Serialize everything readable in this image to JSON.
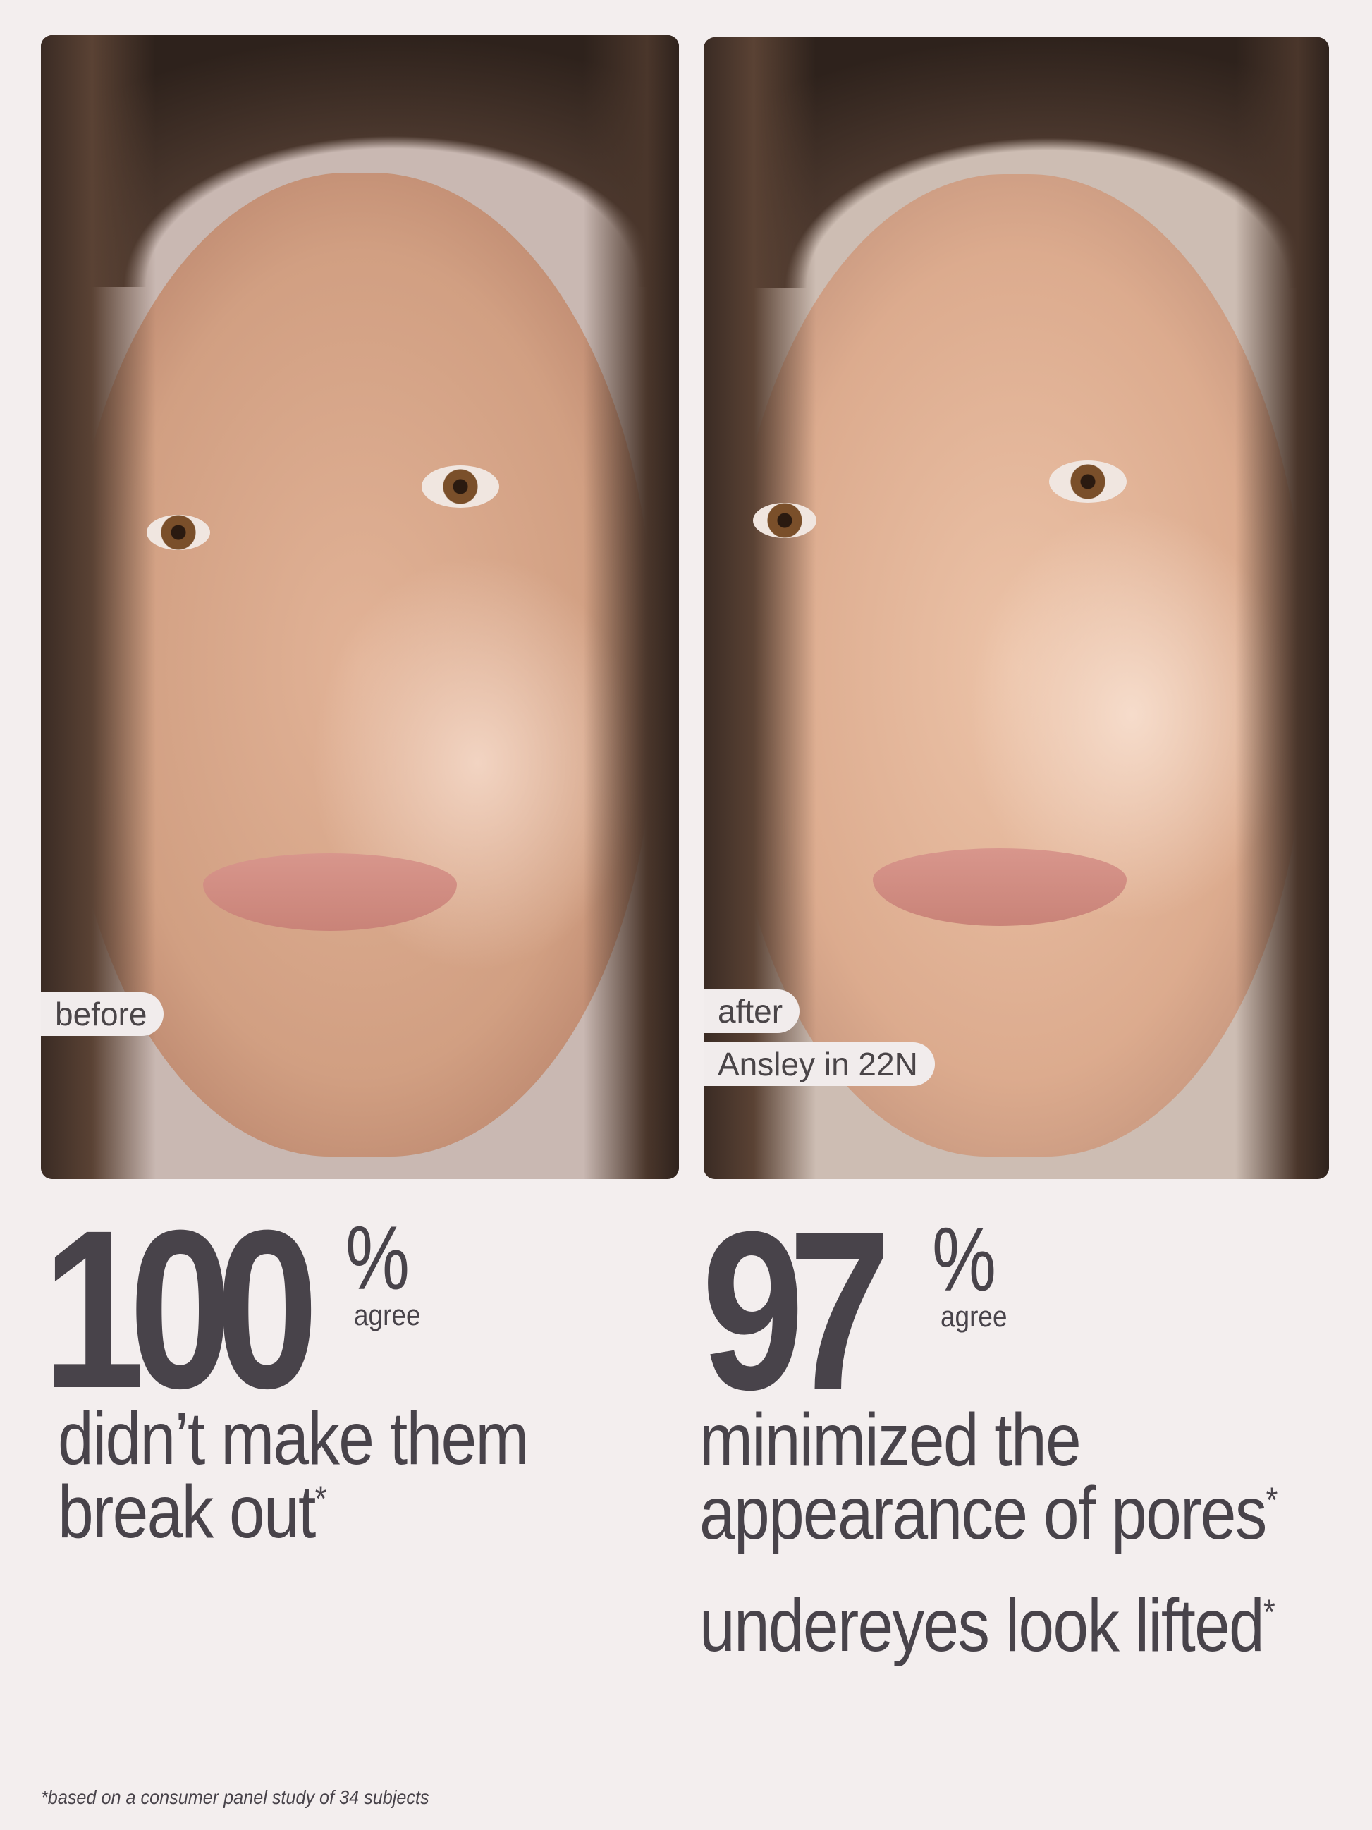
{
  "before_panel": {
    "label": "before"
  },
  "after_panel": {
    "label": "after",
    "model_label": "Ansley in 22N"
  },
  "stats": [
    {
      "value": "100",
      "unit": "%",
      "unit_caption": "agree",
      "claims": [
        "didn’t make them",
        "break out"
      ],
      "asterisk": "*"
    },
    {
      "value": "97",
      "unit": "%",
      "unit_caption": "agree",
      "claims": [
        "minimized the",
        "appearance of pores",
        "undereyes look lifted"
      ],
      "asterisk": "*"
    }
  ],
  "footnote": "*based on a consumer panel study of 34 subjects",
  "colors": {
    "background": "#f3eeee",
    "text": "#48434a",
    "pill": "#f1ecec"
  }
}
